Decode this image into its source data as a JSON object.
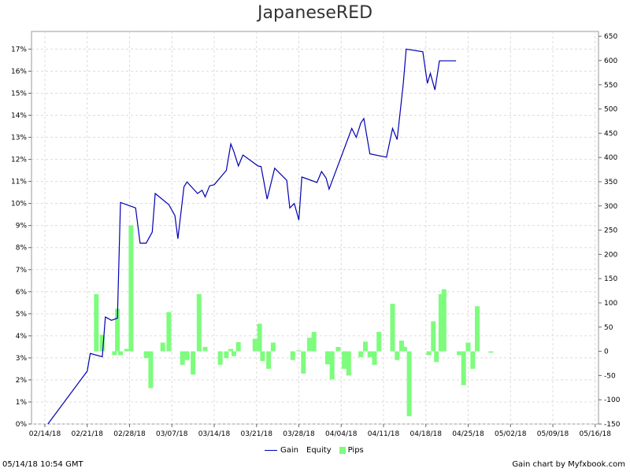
{
  "chart_data": {
    "type": "line",
    "title": "JapaneseRED",
    "x_tick_labels": [
      "02/14/18",
      "02/21/18",
      "02/28/18",
      "03/07/18",
      "03/14/18",
      "03/21/18",
      "03/28/18",
      "04/04/18",
      "04/11/18",
      "04/18/18",
      "04/25/18",
      "05/02/18",
      "05/09/18",
      "05/16/18"
    ],
    "y_left_ticks": [
      "0%",
      "1%",
      "2%",
      "3%",
      "4%",
      "5%",
      "6%",
      "7%",
      "8%",
      "9%",
      "10%",
      "11%",
      "12%",
      "13%",
      "14%",
      "15%",
      "16%",
      "17%"
    ],
    "y_right_ticks": [
      "-150",
      "-100",
      "-50",
      "0",
      "50",
      "100",
      "150",
      "200",
      "250",
      "300",
      "350",
      "400",
      "450",
      "500",
      "550",
      "600",
      "650"
    ],
    "y_left_range": [
      0,
      17.8
    ],
    "y_right_range": [
      -150,
      660
    ],
    "grid": true,
    "legend_position": "bottom",
    "series": [
      {
        "name": "Gain",
        "color": "#0000b3",
        "axis": "left",
        "points": [
          [
            "2018-02-14T12:00",
            0.0
          ],
          [
            "2018-02-21T00:00",
            2.4
          ],
          [
            "2018-02-21T12:00",
            3.2
          ],
          [
            "2018-02-23T12:00",
            3.05
          ],
          [
            "2018-02-24T00:00",
            4.85
          ],
          [
            "2018-02-25T00:00",
            4.7
          ],
          [
            "2018-02-26T00:00",
            4.8
          ],
          [
            "2018-02-26T12:00",
            10.05
          ],
          [
            "2018-03-01T00:00",
            9.8
          ],
          [
            "2018-03-01T18:00",
            8.2
          ],
          [
            "2018-03-02T18:00",
            8.2
          ],
          [
            "2018-03-03T18:00",
            8.7
          ],
          [
            "2018-03-04T06:00",
            10.45
          ],
          [
            "2018-03-06T12:00",
            9.95
          ],
          [
            "2018-03-07T12:00",
            9.45
          ],
          [
            "2018-03-08T00:00",
            8.4
          ],
          [
            "2018-03-09T00:00",
            10.75
          ],
          [
            "2018-03-09T12:00",
            10.98
          ],
          [
            "2018-03-11T06:00",
            10.45
          ],
          [
            "2018-03-12T00:00",
            10.6
          ],
          [
            "2018-03-12T12:00",
            10.3
          ],
          [
            "2018-03-13T06:00",
            10.8
          ],
          [
            "2018-03-14T00:00",
            10.85
          ],
          [
            "2018-03-16T00:00",
            11.5
          ],
          [
            "2018-03-16T18:00",
            12.7
          ],
          [
            "2018-03-17T06:00",
            12.35
          ],
          [
            "2018-03-18T00:00",
            11.7
          ],
          [
            "2018-03-18T18:00",
            12.2
          ],
          [
            "2018-03-21T06:00",
            11.7
          ],
          [
            "2018-03-21T18:00",
            11.68
          ],
          [
            "2018-03-22T18:00",
            10.2
          ],
          [
            "2018-03-24T00:00",
            11.6
          ],
          [
            "2018-03-26T00:00",
            11.05
          ],
          [
            "2018-03-26T12:00",
            9.8
          ],
          [
            "2018-03-27T06:00",
            10.0
          ],
          [
            "2018-03-28T00:00",
            9.25
          ],
          [
            "2018-03-28T12:00",
            11.2
          ],
          [
            "2018-03-31T00:00",
            10.95
          ],
          [
            "2018-03-31T18:00",
            11.45
          ],
          [
            "2018-04-01T12:00",
            11.15
          ],
          [
            "2018-04-02T00:00",
            10.65
          ],
          [
            "2018-04-05T18:00",
            13.4
          ],
          [
            "2018-04-06T12:00",
            13.0
          ],
          [
            "2018-04-07T06:00",
            13.65
          ],
          [
            "2018-04-07T18:00",
            13.85
          ],
          [
            "2018-04-08T18:00",
            12.25
          ],
          [
            "2018-04-11T12:00",
            12.1
          ],
          [
            "2018-04-12T12:00",
            13.4
          ],
          [
            "2018-04-13T06:00",
            12.9
          ],
          [
            "2018-04-14T06:00",
            15.4
          ],
          [
            "2018-04-14T18:00",
            17.0
          ],
          [
            "2018-04-17T12:00",
            16.88
          ],
          [
            "2018-04-18T06:00",
            15.45
          ],
          [
            "2018-04-18T18:00",
            15.9
          ],
          [
            "2018-04-19T12:00",
            15.15
          ],
          [
            "2018-04-20T06:00",
            16.47
          ],
          [
            "2018-04-23T00:00",
            16.47
          ]
        ]
      },
      {
        "name": "Equity",
        "legend_only": true
      },
      {
        "name": "Pips",
        "color": "#7dfc7d",
        "axis": "right",
        "bars": [
          [
            "2018-02-22T12:00",
            118
          ],
          [
            "2018-02-23T12:00",
            34
          ],
          [
            "2018-02-25T12:00",
            -8
          ],
          [
            "2018-02-26T00:00",
            88
          ],
          [
            "2018-02-26T12:00",
            -8
          ],
          [
            "2018-02-27T12:00",
            5
          ],
          [
            "2018-02-28T06:00",
            260
          ],
          [
            "2018-03-02T18:00",
            -14
          ],
          [
            "2018-03-03T12:00",
            -76
          ],
          [
            "2018-03-05T12:00",
            18
          ],
          [
            "2018-03-06T12:00",
            81
          ],
          [
            "2018-03-08T18:00",
            -28
          ],
          [
            "2018-03-09T12:00",
            -18
          ],
          [
            "2018-03-10T12:00",
            -48
          ],
          [
            "2018-03-11T12:00",
            118
          ],
          [
            "2018-03-12T12:00",
            9
          ],
          [
            "2018-03-15T00:00",
            -28
          ],
          [
            "2018-03-16T00:00",
            -14
          ],
          [
            "2018-03-16T18:00",
            5
          ],
          [
            "2018-03-17T06:00",
            -10
          ],
          [
            "2018-03-18T00:00",
            19
          ],
          [
            "2018-03-20T18:00",
            26
          ],
          [
            "2018-03-21T12:00",
            57
          ],
          [
            "2018-03-22T00:00",
            -20
          ],
          [
            "2018-03-23T00:00",
            -36
          ],
          [
            "2018-03-23T18:00",
            18
          ],
          [
            "2018-03-27T00:00",
            -18
          ],
          [
            "2018-03-28T00:00",
            2
          ],
          [
            "2018-03-28T18:00",
            -46
          ],
          [
            "2018-03-29T18:00",
            28
          ],
          [
            "2018-03-30T12:00",
            40
          ],
          [
            "2018-04-01T18:00",
            -27
          ],
          [
            "2018-04-02T12:00",
            -58
          ],
          [
            "2018-04-03T12:00",
            9
          ],
          [
            "2018-04-04T12:00",
            -36
          ],
          [
            "2018-04-05T06:00",
            -50
          ],
          [
            "2018-04-07T06:00",
            -12
          ],
          [
            "2018-04-08T00:00",
            20
          ],
          [
            "2018-04-08T18:00",
            -12
          ],
          [
            "2018-04-09T12:00",
            -28
          ],
          [
            "2018-04-10T06:00",
            40
          ],
          [
            "2018-04-12T12:00",
            98
          ],
          [
            "2018-04-13T06:00",
            -18
          ],
          [
            "2018-04-14T00:00",
            22
          ],
          [
            "2018-04-14T12:00",
            9
          ],
          [
            "2018-04-15T06:00",
            -134
          ],
          [
            "2018-04-18T12:00",
            -8
          ],
          [
            "2018-04-19T06:00",
            62
          ],
          [
            "2018-04-19T18:00",
            -22
          ],
          [
            "2018-04-20T12:00",
            118
          ],
          [
            "2018-04-21T00:00",
            128
          ],
          [
            "2018-04-23T12:00",
            -8
          ],
          [
            "2018-04-24T06:00",
            -70
          ],
          [
            "2018-04-25T00:00",
            18
          ],
          [
            "2018-04-25T18:00",
            -36
          ],
          [
            "2018-04-26T12:00",
            93
          ],
          [
            "2018-04-28T18:00",
            -3
          ]
        ]
      }
    ]
  },
  "legend": {
    "gain_label": "Gain",
    "equity_label": "Equity",
    "pips_label": "Pips"
  },
  "footer": {
    "timestamp": "05/14/18 10:54 GMT",
    "credit": "Gain chart  by Myfxbook.com"
  }
}
